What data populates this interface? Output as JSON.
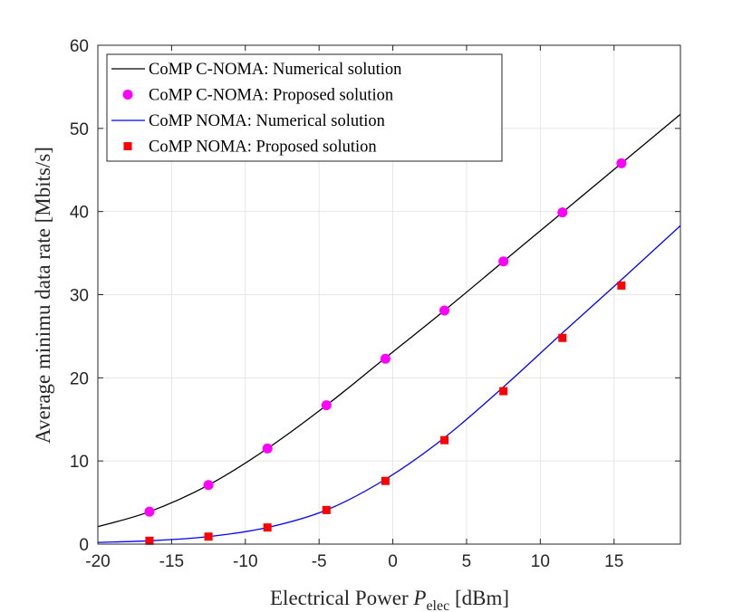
{
  "chart_data": {
    "type": "line",
    "title": "",
    "xlabel": "Electrical Power",
    "xlabel_symbol": "P",
    "xlabel_subscript": "elec",
    "xlabel_unit": "[dBm]",
    "ylabel": "Average minimu data rate [Mbits/s]",
    "xlim": [
      -20,
      19.5
    ],
    "ylim": [
      0,
      60
    ],
    "xticks": [
      "-20",
      "-15",
      "-10",
      "-5",
      "0",
      "5",
      "10",
      "15"
    ],
    "xtick_values": [
      -20,
      -15,
      -10,
      -5,
      0,
      5,
      10,
      15
    ],
    "yticks": [
      "0",
      "10",
      "20",
      "30",
      "40",
      "50",
      "60"
    ],
    "ytick_values": [
      0,
      10,
      20,
      30,
      40,
      50,
      60
    ],
    "grid": true,
    "legend_position": "top-left",
    "series": [
      {
        "name": "CoMP C-NOMA: Numerical solution",
        "style": "line",
        "color": "#000000",
        "x": [
          -20,
          -16.5,
          -12.5,
          -8.5,
          -4.5,
          -0.5,
          3.5,
          7.5,
          11.5,
          15.5,
          19.5
        ],
        "y": [
          2.1,
          3.9,
          7.1,
          11.5,
          16.7,
          22.4,
          28.1,
          34.0,
          39.9,
          45.8,
          51.7
        ]
      },
      {
        "name": "CoMP C-NOMA: Proposed solution",
        "style": "marker-circle",
        "color": "#ff00ff",
        "x": [
          -16.5,
          -12.5,
          -8.5,
          -4.5,
          -0.5,
          3.5,
          7.5,
          11.5,
          15.5
        ],
        "y": [
          3.9,
          7.1,
          11.5,
          16.7,
          22.3,
          28.1,
          34.0,
          39.9,
          45.8
        ]
      },
      {
        "name": "CoMP NOMA: Numerical solution",
        "style": "line",
        "color": "#0000ff",
        "x": [
          -20,
          -16.5,
          -12.5,
          -8.5,
          -4.5,
          -0.5,
          3.5,
          7.5,
          11.5,
          15.5,
          19.5
        ],
        "y": [
          0.2,
          0.4,
          0.9,
          2.0,
          4.1,
          7.8,
          12.8,
          18.9,
          25.4,
          31.8,
          38.3
        ]
      },
      {
        "name": "CoMP NOMA: Proposed solution",
        "style": "marker-square",
        "color": "#ff0000",
        "x": [
          -16.5,
          -12.5,
          -8.5,
          -4.5,
          -0.5,
          3.5,
          7.5,
          11.5,
          15.5
        ],
        "y": [
          0.4,
          0.9,
          2.0,
          4.1,
          7.6,
          12.5,
          18.4,
          24.8,
          31.1
        ]
      }
    ]
  }
}
